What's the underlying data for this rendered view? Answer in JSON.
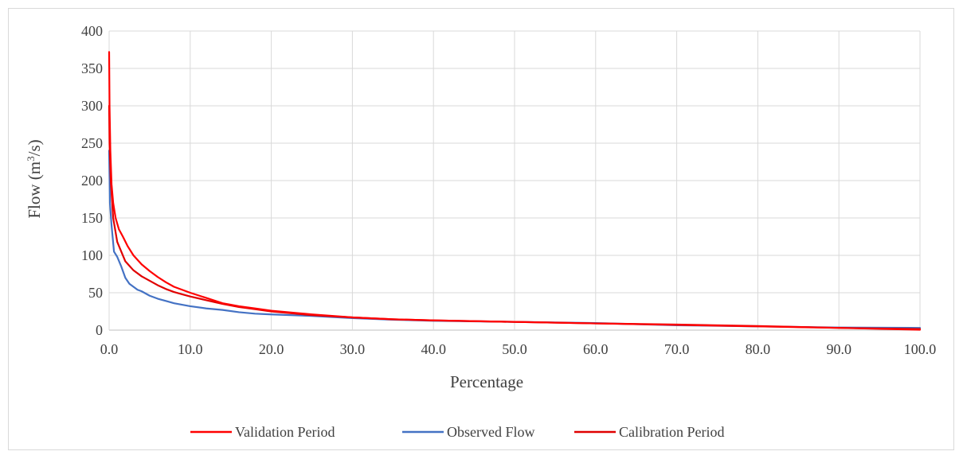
{
  "chart_data": {
    "type": "line",
    "title": "",
    "xlabel": "Percentage",
    "ylabel_prefix": "Flow (m",
    "ylabel_sup": "3",
    "ylabel_suffix": "/s)",
    "xlim": [
      0,
      100
    ],
    "ylim": [
      0,
      400
    ],
    "x_ticks": [
      0,
      10,
      20,
      30,
      40,
      50,
      60,
      70,
      80,
      90,
      100
    ],
    "x_tick_labels": [
      "0.0",
      "10.0",
      "20.0",
      "30.0",
      "40.0",
      "50.0",
      "60.0",
      "70.0",
      "80.0",
      "90.0",
      "100.0"
    ],
    "y_ticks": [
      0,
      50,
      100,
      150,
      200,
      250,
      300,
      350,
      400
    ],
    "y_tick_labels": [
      "0",
      "50",
      "100",
      "150",
      "200",
      "250",
      "300",
      "350",
      "400"
    ],
    "grid": true,
    "legend_position": "bottom",
    "series": [
      {
        "name": "Validation Period",
        "color": "#ff0000",
        "points": [
          [
            0,
            372
          ],
          [
            0.05,
            300
          ],
          [
            0.15,
            240
          ],
          [
            0.3,
            195
          ],
          [
            0.5,
            170
          ],
          [
            0.8,
            150
          ],
          [
            1.2,
            135
          ],
          [
            1.7,
            125
          ],
          [
            2.3,
            112
          ],
          [
            3,
            100
          ],
          [
            4,
            88
          ],
          [
            5,
            79
          ],
          [
            6,
            71
          ],
          [
            7,
            64
          ],
          [
            8,
            58
          ],
          [
            9,
            54
          ],
          [
            10,
            50
          ],
          [
            12,
            43
          ],
          [
            14,
            36
          ],
          [
            16,
            32
          ],
          [
            18,
            29
          ],
          [
            20,
            26
          ],
          [
            25,
            21
          ],
          [
            30,
            17
          ],
          [
            35,
            14.5
          ],
          [
            40,
            13
          ],
          [
            50,
            11
          ],
          [
            60,
            9
          ],
          [
            70,
            7
          ],
          [
            80,
            5
          ],
          [
            90,
            3
          ],
          [
            100,
            0.5
          ]
        ]
      },
      {
        "name": "Observed Flow",
        "color": "#4472c4",
        "points": [
          [
            0,
            240
          ],
          [
            0.1,
            170
          ],
          [
            0.3,
            140
          ],
          [
            0.6,
            105
          ],
          [
            1,
            98
          ],
          [
            1.5,
            85
          ],
          [
            2,
            70
          ],
          [
            2.5,
            62
          ],
          [
            3,
            58
          ],
          [
            3.5,
            54
          ],
          [
            4,
            52
          ],
          [
            5,
            46
          ],
          [
            6,
            42
          ],
          [
            7,
            39
          ],
          [
            8,
            36
          ],
          [
            9,
            34
          ],
          [
            10,
            32
          ],
          [
            12,
            29
          ],
          [
            14,
            27
          ],
          [
            16,
            24
          ],
          [
            18,
            22
          ],
          [
            20,
            21
          ],
          [
            25,
            19
          ],
          [
            30,
            16
          ],
          [
            35,
            14
          ],
          [
            40,
            12.5
          ],
          [
            50,
            11
          ],
          [
            60,
            9.5
          ],
          [
            65,
            8
          ],
          [
            70,
            6.5
          ],
          [
            80,
            5
          ],
          [
            90,
            3.5
          ],
          [
            100,
            3
          ]
        ]
      },
      {
        "name": "Calibration Period",
        "color": "#e00000",
        "points": [
          [
            0,
            300
          ],
          [
            0.05,
            250
          ],
          [
            0.2,
            200
          ],
          [
            0.5,
            150
          ],
          [
            1,
            118
          ],
          [
            1.5,
            105
          ],
          [
            2,
            92
          ],
          [
            2.5,
            86
          ],
          [
            3,
            80
          ],
          [
            4,
            72
          ],
          [
            5,
            66
          ],
          [
            6,
            60
          ],
          [
            7,
            55
          ],
          [
            8,
            51
          ],
          [
            9,
            48
          ],
          [
            10,
            45
          ],
          [
            12,
            40
          ],
          [
            14,
            35
          ],
          [
            16,
            31
          ],
          [
            18,
            28
          ],
          [
            20,
            25
          ],
          [
            25,
            20
          ],
          [
            30,
            17
          ],
          [
            35,
            14.5
          ],
          [
            40,
            13
          ],
          [
            50,
            11
          ],
          [
            60,
            9
          ],
          [
            70,
            7.5
          ],
          [
            80,
            5.5
          ],
          [
            90,
            3
          ],
          [
            100,
            1.5
          ]
        ]
      }
    ]
  }
}
